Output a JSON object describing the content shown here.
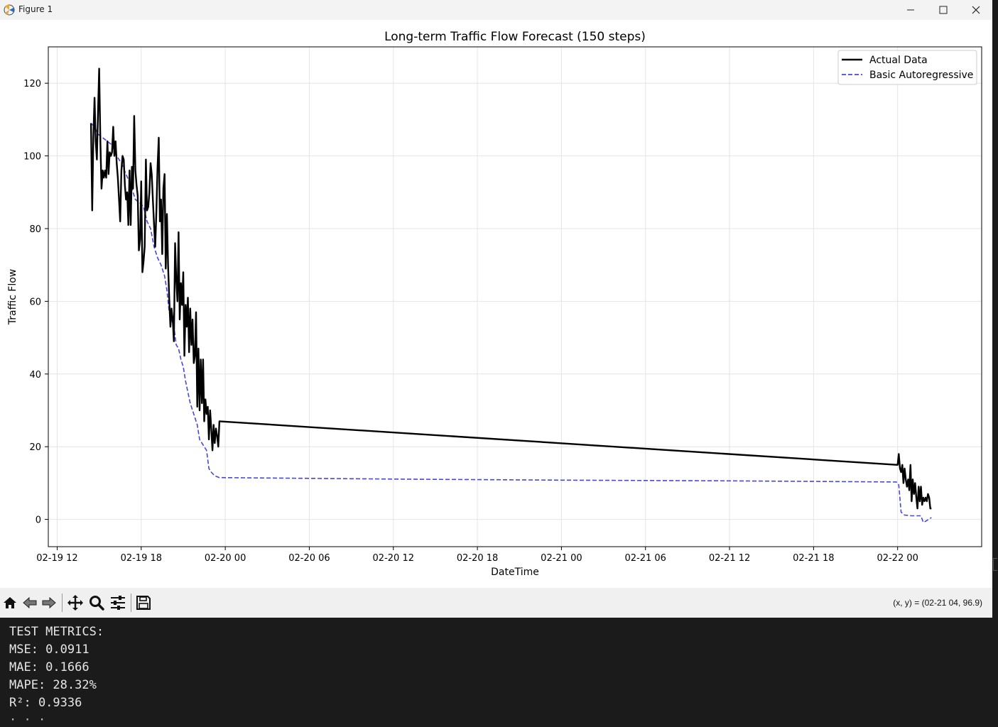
{
  "window": {
    "title": "Figure 1",
    "controls": [
      "minimize",
      "maximize",
      "close"
    ]
  },
  "chart_data": {
    "type": "line",
    "title": "Long-term Traffic Flow Forecast (150 steps)",
    "xlabel": "DateTime",
    "ylabel": "Traffic Flow",
    "x_ticks": [
      "02-19 12",
      "02-19 18",
      "02-20 00",
      "02-20 06",
      "02-20 12",
      "02-20 18",
      "02-21 00",
      "02-21 06",
      "02-21 12",
      "02-21 18",
      "02-22 00"
    ],
    "y_ticks": [
      "0",
      "20",
      "40",
      "60",
      "80",
      "100",
      "120"
    ],
    "xlim": [
      "02-19 11:22",
      "02-22 06:00"
    ],
    "ylim": [
      -7.5,
      130
    ],
    "grid": true,
    "legend_position": "top-right",
    "series": [
      {
        "name": "Actual Data",
        "color": "#000000",
        "style": "solid",
        "points": [
          [
            "02-19 14:25",
            109
          ],
          [
            "02-19 14:30",
            85
          ],
          [
            "02-19 14:35",
            105
          ],
          [
            "02-19 14:40",
            116
          ],
          [
            "02-19 14:45",
            104
          ],
          [
            "02-19 14:50",
            99
          ],
          [
            "02-19 14:55",
            112
          ],
          [
            "02-19 15:00",
            124
          ],
          [
            "02-19 15:05",
            104
          ],
          [
            "02-19 15:10",
            91
          ],
          [
            "02-19 15:15",
            96
          ],
          [
            "02-19 15:20",
            94
          ],
          [
            "02-19 15:25",
            96
          ],
          [
            "02-19 15:30",
            94
          ],
          [
            "02-19 15:35",
            104
          ],
          [
            "02-19 15:40",
            95
          ],
          [
            "02-19 15:45",
            101
          ],
          [
            "02-19 15:50",
            100
          ],
          [
            "02-19 15:55",
            101
          ],
          [
            "02-19 16:00",
            108
          ],
          [
            "02-19 16:05",
            100
          ],
          [
            "02-19 16:10",
            104
          ],
          [
            "02-19 16:15",
            98
          ],
          [
            "02-19 16:20",
            94
          ],
          [
            "02-19 16:25",
            88
          ],
          [
            "02-19 16:30",
            82
          ],
          [
            "02-19 16:35",
            96
          ],
          [
            "02-19 16:40",
            100
          ],
          [
            "02-19 16:45",
            99
          ],
          [
            "02-19 16:50",
            92
          ],
          [
            "02-19 16:55",
            88
          ],
          [
            "02-19 17:00",
            90
          ],
          [
            "02-19 17:05",
            81
          ],
          [
            "02-19 17:10",
            96
          ],
          [
            "02-19 17:15",
            81
          ],
          [
            "02-19 17:20",
            97
          ],
          [
            "02-19 17:25",
            91
          ],
          [
            "02-19 17:30",
            111
          ],
          [
            "02-19 17:35",
            96
          ],
          [
            "02-19 17:40",
            92
          ],
          [
            "02-19 17:45",
            89
          ],
          [
            "02-19 17:50",
            74
          ],
          [
            "02-19 17:55",
            77
          ],
          [
            "02-19 18:00",
            93
          ],
          [
            "02-19 18:05",
            68
          ],
          [
            "02-19 18:10",
            71
          ],
          [
            "02-19 18:15",
            75
          ],
          [
            "02-19 18:20",
            99
          ],
          [
            "02-19 18:25",
            85
          ],
          [
            "02-19 18:30",
            86
          ],
          [
            "02-19 18:35",
            90
          ],
          [
            "02-19 18:40",
            98
          ],
          [
            "02-19 18:45",
            95
          ],
          [
            "02-19 18:50",
            88
          ],
          [
            "02-19 18:55",
            81
          ],
          [
            "02-19 19:00",
            75
          ],
          [
            "02-19 19:05",
            85
          ],
          [
            "02-19 19:10",
            97
          ],
          [
            "02-19 19:15",
            105
          ],
          [
            "02-19 19:20",
            82
          ],
          [
            "02-19 19:25",
            88
          ],
          [
            "02-19 19:30",
            73
          ],
          [
            "02-19 19:35",
            91
          ],
          [
            "02-19 19:40",
            95
          ],
          [
            "02-19 19:45",
            69
          ],
          [
            "02-19 19:50",
            84
          ],
          [
            "02-19 19:55",
            70
          ],
          [
            "02-19 20:00",
            61
          ],
          [
            "02-19 20:05",
            53
          ],
          [
            "02-19 20:10",
            58
          ],
          [
            "02-19 20:15",
            55
          ],
          [
            "02-19 20:20",
            49
          ],
          [
            "02-19 20:25",
            76
          ],
          [
            "02-19 20:30",
            66
          ],
          [
            "02-19 20:35",
            60
          ],
          [
            "02-19 20:40",
            79
          ],
          [
            "02-19 20:45",
            55
          ],
          [
            "02-19 20:50",
            65
          ],
          [
            "02-19 20:55",
            59
          ],
          [
            "02-19 21:00",
            68
          ],
          [
            "02-19 21:05",
            45
          ],
          [
            "02-19 21:10",
            59
          ],
          [
            "02-19 21:15",
            53
          ],
          [
            "02-19 21:20",
            61
          ],
          [
            "02-19 21:25",
            46
          ],
          [
            "02-19 21:30",
            58
          ],
          [
            "02-19 21:35",
            48
          ],
          [
            "02-19 21:40",
            55
          ],
          [
            "02-19 21:45",
            43
          ],
          [
            "02-19 21:50",
            45
          ],
          [
            "02-19 21:55",
            57
          ],
          [
            "02-19 22:00",
            31
          ],
          [
            "02-19 22:05",
            47
          ],
          [
            "02-19 22:10",
            30
          ],
          [
            "02-19 22:15",
            44
          ],
          [
            "02-19 22:20",
            32
          ],
          [
            "02-19 22:25",
            44
          ],
          [
            "02-19 22:30",
            27
          ],
          [
            "02-19 22:35",
            33
          ],
          [
            "02-19 22:40",
            29
          ],
          [
            "02-19 22:45",
            31
          ],
          [
            "02-19 22:50",
            22
          ],
          [
            "02-19 22:55",
            30
          ],
          [
            "02-19 23:00",
            25
          ],
          [
            "02-19 23:05",
            19
          ],
          [
            "02-19 23:10",
            26
          ],
          [
            "02-19 23:15",
            21
          ],
          [
            "02-19 23:20",
            25
          ],
          [
            "02-19 23:25",
            23
          ],
          [
            "02-19 23:30",
            20
          ],
          [
            "02-19 23:35",
            27
          ],
          [
            "02-22 00:00",
            15
          ],
          [
            "02-22 00:05",
            18
          ],
          [
            "02-22 00:10",
            14
          ],
          [
            "02-22 00:15",
            13
          ],
          [
            "02-22 00:20",
            15
          ],
          [
            "02-22 00:25",
            10
          ],
          [
            "02-22 00:30",
            14
          ],
          [
            "02-22 00:35",
            11
          ],
          [
            "02-22 00:40",
            9
          ],
          [
            "02-22 00:45",
            11
          ],
          [
            "02-22 00:50",
            8
          ],
          [
            "02-22 00:55",
            15
          ],
          [
            "02-22 01:00",
            5
          ],
          [
            "02-22 01:05",
            11
          ],
          [
            "02-22 01:10",
            7
          ],
          [
            "02-22 01:15",
            10
          ],
          [
            "02-22 01:20",
            6
          ],
          [
            "02-22 01:25",
            3
          ],
          [
            "02-22 01:30",
            9
          ],
          [
            "02-22 01:35",
            5
          ],
          [
            "02-22 01:40",
            9
          ],
          [
            "02-22 01:45",
            4
          ],
          [
            "02-22 01:50",
            6
          ],
          [
            "02-22 01:55",
            5
          ],
          [
            "02-22 02:00",
            6
          ],
          [
            "02-22 02:05",
            5
          ],
          [
            "02-22 02:10",
            7
          ],
          [
            "02-22 02:15",
            6
          ],
          [
            "02-22 02:20",
            3
          ],
          [
            "02-22 02:25",
            3
          ]
        ]
      },
      {
        "name": "Basic Autoregressive",
        "color": "#4646e6",
        "style": "dashed",
        "points": [
          [
            "02-19 14:25",
            109
          ],
          [
            "02-19 14:40",
            108
          ],
          [
            "02-19 14:55",
            106
          ],
          [
            "02-19 15:15",
            105
          ],
          [
            "02-19 15:35",
            104
          ],
          [
            "02-19 15:55",
            103
          ],
          [
            "02-19 16:15",
            100
          ],
          [
            "02-19 16:35",
            98
          ],
          [
            "02-19 16:55",
            95
          ],
          [
            "02-19 17:15",
            92
          ],
          [
            "02-19 17:35",
            88
          ],
          [
            "02-19 17:55",
            87
          ],
          [
            "02-19 18:10",
            86
          ],
          [
            "02-19 18:25",
            82
          ],
          [
            "02-19 18:40",
            80
          ],
          [
            "02-19 18:55",
            75
          ],
          [
            "02-19 19:10",
            72
          ],
          [
            "02-19 19:25",
            70
          ],
          [
            "02-19 19:40",
            67
          ],
          [
            "02-19 19:50",
            63
          ],
          [
            "02-19 20:00",
            57
          ],
          [
            "02-19 20:10",
            55
          ],
          [
            "02-19 20:20",
            53
          ],
          [
            "02-19 20:30",
            48
          ],
          [
            "02-19 20:40",
            47
          ],
          [
            "02-19 20:50",
            44
          ],
          [
            "02-19 21:00",
            42
          ],
          [
            "02-19 21:10",
            38
          ],
          [
            "02-19 21:20",
            35
          ],
          [
            "02-19 21:30",
            32
          ],
          [
            "02-19 21:40",
            30
          ],
          [
            "02-19 21:50",
            28
          ],
          [
            "02-19 22:00",
            26
          ],
          [
            "02-19 22:10",
            22
          ],
          [
            "02-19 22:20",
            21
          ],
          [
            "02-19 22:30",
            20
          ],
          [
            "02-19 22:40",
            19
          ],
          [
            "02-19 22:50",
            14
          ],
          [
            "02-19 23:00",
            13
          ],
          [
            "02-19 23:15",
            12
          ],
          [
            "02-19 23:35",
            11.5
          ],
          [
            "02-20 12:00",
            11.1
          ],
          [
            "02-21 00:00",
            10.8
          ],
          [
            "02-21 12:00",
            10.6
          ],
          [
            "02-21 23:55",
            10.3
          ],
          [
            "02-22 00:05",
            9.5
          ],
          [
            "02-22 00:15",
            2
          ],
          [
            "02-22 00:30",
            1.2
          ],
          [
            "02-22 01:00",
            1
          ],
          [
            "02-22 01:40",
            1
          ],
          [
            "02-22 01:50",
            -0.8
          ],
          [
            "02-22 02:00",
            -0.5
          ],
          [
            "02-22 02:25",
            0.5
          ]
        ]
      }
    ]
  },
  "toolbar": {
    "buttons": [
      "home-icon",
      "back-icon",
      "forward-icon",
      "pan-icon",
      "zoom-icon",
      "configure-icon",
      "save-icon"
    ],
    "coords_label": "(x, y) = (02-21 04, 96.9)"
  },
  "terminal": {
    "lines": [
      "TEST METRICS:",
      "MSE: 0.0911",
      "MAE: 0.1666",
      "MAPE: 28.32%",
      "R²: 0.9336"
    ]
  }
}
